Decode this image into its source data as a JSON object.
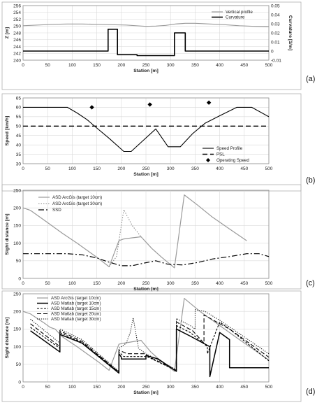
{
  "chart_data": [
    {
      "panel_label": "(a)",
      "type": "line",
      "xlabel": "Station [m]",
      "ylabel": "Z [m]",
      "y2label": "Curvature [1/m]",
      "xlim": [
        0,
        500
      ],
      "ylim": [
        240,
        256
      ],
      "y2lim": [
        -0.01,
        0.05
      ],
      "xticks": [
        0,
        50,
        100,
        150,
        200,
        250,
        300,
        350,
        400,
        450,
        500
      ],
      "yticks": [
        240,
        242,
        244,
        246,
        248,
        250,
        252,
        254,
        256
      ],
      "y2ticks": [
        -0.01,
        0,
        0.01,
        0.02,
        0.03,
        0.04,
        0.05
      ],
      "y2ticklabels": [
        "-0.01",
        "0",
        "0.01",
        "0.02",
        "0.03",
        "0.04",
        "0.05"
      ],
      "legend_position": "top-right",
      "colors": {
        "vertical_profile": "#999999",
        "curvature": "#000000"
      },
      "series": [
        {
          "name": "Vertical profile",
          "axis": "left",
          "style": "solid-gray",
          "x": [
            0,
            30,
            60,
            90,
            120,
            150,
            180,
            210,
            230,
            250,
            270,
            290,
            310,
            330,
            350,
            380,
            410,
            440,
            470,
            500
          ],
          "values": [
            250.1,
            250.3,
            250.5,
            250.6,
            250.6,
            250.5,
            250.4,
            250.3,
            250.1,
            249.9,
            250.0,
            250.2,
            250.6,
            250.8,
            250.8,
            250.6,
            250.4,
            250.1,
            249.9,
            249.8
          ]
        },
        {
          "name": "Curvature",
          "axis": "right",
          "style": "solid-black",
          "step": true,
          "x": [
            0,
            173,
            173,
            192,
            192,
            232,
            232,
            308,
            308,
            330,
            330,
            500
          ],
          "values": [
            0,
            0,
            0.024,
            0.024,
            -0.004,
            -0.004,
            -0.005,
            -0.005,
            0.02,
            0.02,
            0,
            0
          ]
        }
      ]
    },
    {
      "panel_label": "(b)",
      "type": "line",
      "xlabel": "Station [m]",
      "ylabel": "Speed [km/h]",
      "xlim": [
        0,
        500
      ],
      "ylim": [
        30,
        65
      ],
      "xticks": [
        0,
        50,
        100,
        150,
        200,
        250,
        300,
        350,
        400,
        450,
        500
      ],
      "yticks": [
        30,
        35,
        40,
        45,
        50,
        55,
        60,
        65
      ],
      "legend_position": "bottom-right",
      "series": [
        {
          "name": "Speed Profile",
          "style": "solid",
          "x": [
            0,
            90,
            110,
            130,
            150,
            175,
            205,
            220,
            245,
            270,
            295,
            320,
            345,
            370,
            400,
            435,
            465,
            500
          ],
          "values": [
            60,
            60,
            57,
            53.5,
            49,
            43.5,
            36.5,
            36.5,
            42.5,
            48.5,
            39,
            39,
            46,
            51.5,
            55.5,
            60,
            60,
            55
          ]
        },
        {
          "name": "PSL",
          "style": "dashed",
          "x": [
            0,
            500
          ],
          "values": [
            50,
            50
          ]
        },
        {
          "name": "Operating Speed",
          "style": "diamond-markers",
          "x": [
            140,
            258,
            378
          ],
          "values": [
            60,
            61.5,
            62.5
          ]
        }
      ]
    },
    {
      "panel_label": "(c)",
      "type": "line",
      "xlabel": "Station [m]",
      "ylabel": "Sight distance [m]",
      "xlim": [
        0,
        500
      ],
      "ylim": [
        0,
        250
      ],
      "xticks": [
        0,
        50,
        100,
        150,
        200,
        250,
        300,
        350,
        400,
        450,
        500
      ],
      "yticks": [
        0,
        50,
        100,
        150,
        200,
        250
      ],
      "legend_position": "top-left",
      "series": [
        {
          "name": "ASD ArcGis (target 10cm)",
          "style": "solid-gray",
          "x": [
            0,
            15,
            45,
            80,
            110,
            135,
            155,
            175,
            195,
            205,
            222,
            240,
            262,
            282,
            308,
            328,
            355,
            385,
            420,
            455
          ],
          "values": [
            200,
            193,
            163,
            128,
            100,
            75,
            55,
            33,
            107,
            112,
            115,
            118,
            85,
            60,
            30,
            237,
            208,
            174,
            140,
            107
          ]
        },
        {
          "name": "ASD ArcGis (target 30cm)",
          "style": "dotted-gray",
          "x": [
            175,
            190,
            205,
            222,
            240
          ],
          "values": [
            33,
            62,
            195,
            150,
            118
          ]
        },
        {
          "name": "SSD",
          "style": "dash-dot",
          "x": [
            0,
            40,
            90,
            120,
            150,
            175,
            200,
            222,
            245,
            270,
            295,
            325,
            355,
            385,
            420,
            455,
            480,
            500
          ],
          "values": [
            70,
            70,
            70,
            67,
            58,
            46,
            36,
            36,
            43,
            50,
            40,
            38,
            45,
            55,
            62,
            70,
            70,
            62
          ]
        }
      ]
    },
    {
      "panel_label": "(d)",
      "type": "line",
      "xlabel": "Station [m]",
      "ylabel": "Sight distance [m]",
      "xlim": [
        0,
        500
      ],
      "ylim": [
        0,
        250
      ],
      "xticks": [
        0,
        50,
        100,
        150,
        200,
        250,
        300,
        350,
        400,
        450,
        500
      ],
      "yticks": [
        0,
        50,
        100,
        150,
        200,
        250
      ],
      "legend_position": "top-left",
      "series": [
        {
          "name": "ASD ArcGis (target 10cm)",
          "style": "solid-gray",
          "x": [
            0,
            15,
            45,
            55,
            65,
            80,
            110,
            135,
            155,
            175,
            195,
            205,
            240,
            260,
            280,
            308,
            328,
            360,
            400,
            440,
            500
          ],
          "values": [
            200,
            193,
            165,
            155,
            150,
            128,
            100,
            75,
            55,
            33,
            107,
            110,
            118,
            85,
            60,
            30,
            237,
            200,
            160,
            120,
            62
          ]
        },
        {
          "name": "ASD Matlab (target 10cm)",
          "style": "solid-black-thick",
          "x": [
            15,
            75,
            75,
            120,
            195,
            195,
            200,
            200,
            250,
            250,
            275,
            312,
            312,
            340,
            380,
            380,
            400,
            420,
            420,
            500
          ],
          "values": [
            145,
            85,
            135,
            110,
            25,
            80,
            70,
            65,
            65,
            75,
            65,
            30,
            150,
            130,
            100,
            15,
            140,
            120,
            40,
            40
          ]
        },
        {
          "name": "ASD Matlab (target 15cm)",
          "style": "dashed-fine",
          "x": [
            15,
            75,
            75,
            120,
            195,
            195,
            205,
            230,
            250,
            255,
            312,
            312,
            340,
            375,
            375,
            400,
            420,
            500
          ],
          "values": [
            155,
            95,
            140,
            112,
            27,
            85,
            72,
            72,
            72,
            70,
            32,
            160,
            140,
            100,
            80,
            170,
            150,
            60
          ]
        },
        {
          "name": "ASD Matlab (target 20cm)",
          "style": "long-dash",
          "x": [
            15,
            75,
            75,
            120,
            195,
            195,
            212,
            230,
            250,
            255,
            312,
            312,
            345,
            368,
            368,
            400,
            420,
            500
          ],
          "values": [
            165,
            100,
            145,
            115,
            28,
            90,
            80,
            80,
            80,
            72,
            33,
            170,
            145,
            110,
            190,
            165,
            150,
            70
          ]
        },
        {
          "name": "ASD Matlab (target 30cm)",
          "style": "dotted",
          "x": [
            15,
            75,
            75,
            120,
            195,
            195,
            210,
            218,
            224,
            235,
            250,
            312,
            312,
            340,
            350,
            350,
            370,
            400,
            500
          ],
          "values": [
            178,
            110,
            150,
            120,
            30,
            95,
            110,
            140,
            182,
            95,
            80,
            35,
            180,
            160,
            150,
            205,
            200,
            175,
            80
          ]
        }
      ]
    }
  ]
}
